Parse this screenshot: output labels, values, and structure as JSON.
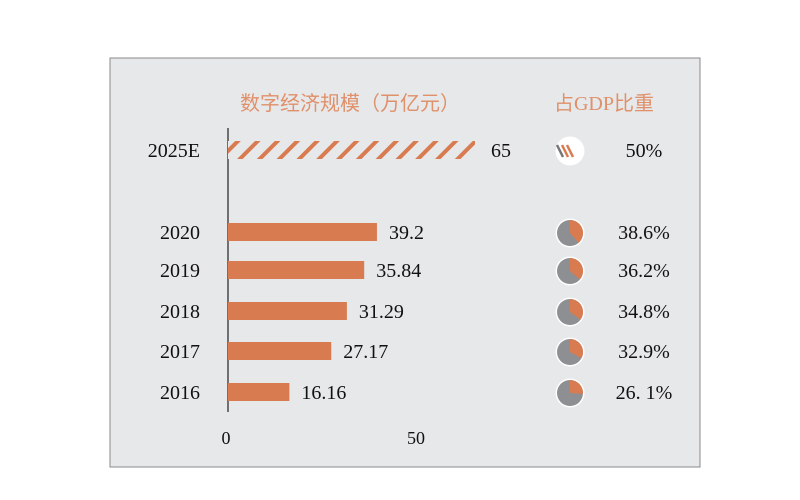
{
  "chart_data": {
    "type": "bar",
    "orientation": "horizontal",
    "title": "数字经济规模（万亿元）",
    "share_title": "占GDP比重",
    "categories": [
      "2025E",
      "2020",
      "2019",
      "2018",
      "2017",
      "2016"
    ],
    "values": [
      65,
      39.2,
      35.84,
      31.29,
      27.17,
      16.16
    ],
    "value_labels": [
      "65",
      "39.2",
      "35.84",
      "31.29",
      "27.17",
      "16.16"
    ],
    "projected": [
      true,
      false,
      false,
      false,
      false,
      false
    ],
    "gdp_share": [
      50,
      38.6,
      36.2,
      34.8,
      32.9,
      26.1
    ],
    "gdp_share_labels": [
      "50%",
      "38.6%",
      "36.2%",
      "34.8%",
      "32.9%",
      "26. 1%"
    ],
    "x_ticks": [
      "0",
      "50"
    ],
    "xlim": [
      0,
      65
    ],
    "grid": false,
    "colors": {
      "bar": "#d97b50",
      "title": "#e0906a",
      "pie_gray": "#8e8f92",
      "background": "#e7e8ea"
    }
  }
}
